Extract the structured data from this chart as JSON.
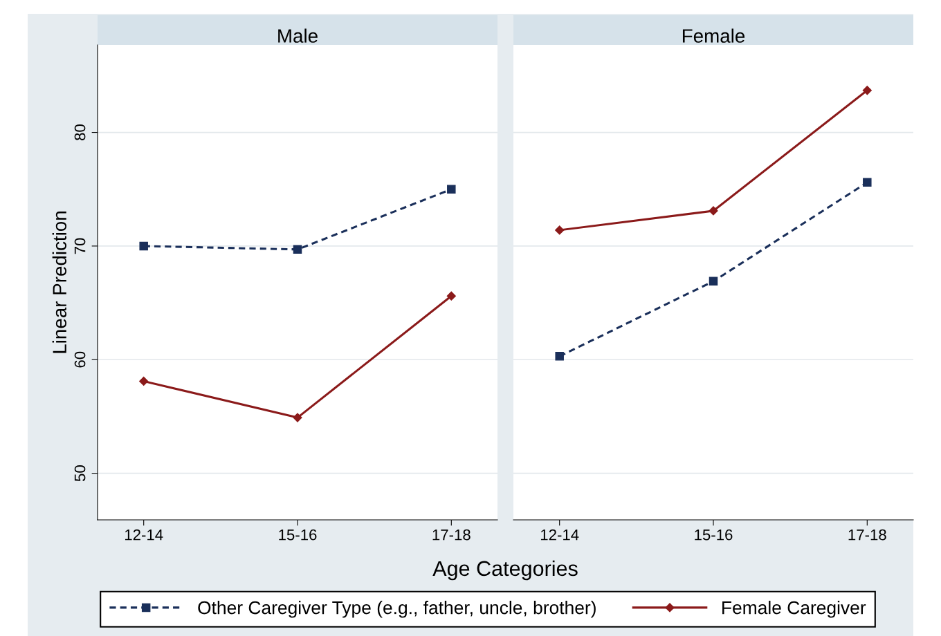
{
  "chart_data": [
    {
      "type": "line",
      "title": "Male",
      "ylabel": "Linear Prediction",
      "xlabel": "Age Categories",
      "categories": [
        "12-14",
        "15-16",
        "17-18"
      ],
      "series": [
        {
          "name": "Other Caregiver Type (e.g., father, uncle, brother)",
          "color": "#1a2f5a",
          "marker": "square",
          "line_style": "dashed",
          "values": [
            70.0,
            69.7,
            75.0
          ]
        },
        {
          "name": "Female Caregiver",
          "color": "#8b1a1a",
          "marker": "diamond",
          "line_style": "solid",
          "values": [
            58.1,
            54.9,
            65.6
          ]
        }
      ],
      "ylim": [
        45.9,
        87.7
      ],
      "yticks": [
        50,
        60,
        70,
        80
      ],
      "grid": "y",
      "legend": "bottom"
    },
    {
      "type": "line",
      "title": "Female",
      "categories": [
        "12-14",
        "15-16",
        "17-18"
      ],
      "series": [
        {
          "color": "#1a2f5a",
          "marker": "square",
          "line_style": "dashed",
          "values": [
            60.3,
            66.9,
            75.6
          ]
        },
        {
          "color": "#8b1a1a",
          "marker": "diamond",
          "line_style": "solid",
          "values": [
            71.4,
            73.1,
            83.7
          ]
        }
      ],
      "ylim": [
        45.9,
        87.7
      ],
      "yticks": [
        50,
        60,
        70,
        80
      ],
      "grid": "y",
      "tick_labels": "x"
    }
  ]
}
